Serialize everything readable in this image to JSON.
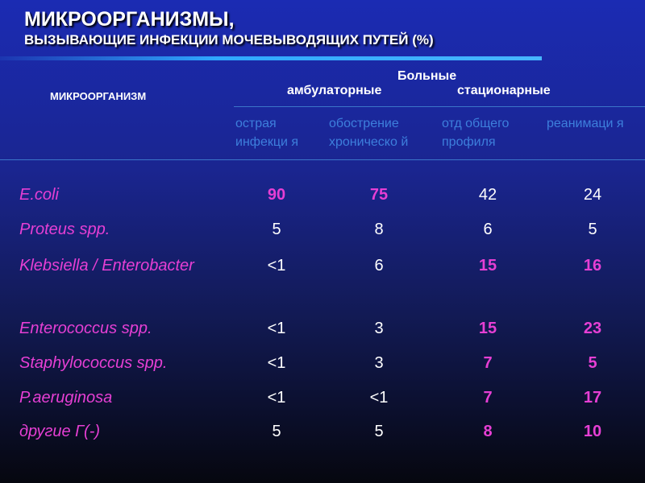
{
  "title": {
    "line1": "МИКРООРГАНИЗМЫ,",
    "line2": "ВЫЗЫВАЮЩИЕ   ИНФЕКЦИИ МОЧЕВЫВОДЯЩИХ ПУТЕЙ (%)"
  },
  "header": {
    "organism": "МИКРООРГАНИЗМ",
    "patients": "Больные",
    "outpatient": "амбулаторные",
    "inpatient": "стационарные"
  },
  "subheaders": [
    "острая инфекци я",
    "обострение хроническо й",
    "отд общего профиля",
    "реанимаци я"
  ],
  "colors": {
    "highlight": "#e63fd4",
    "normal": "#ffffff",
    "subheader": "#3d7fdc"
  },
  "rows": [
    {
      "name": "E.coli",
      "values": [
        "90",
        "75",
        "42",
        "24"
      ],
      "highlight": [
        true,
        true,
        false,
        false
      ]
    },
    {
      "name": "Proteus spp.",
      "values": [
        "5",
        "8",
        "6",
        "5"
      ],
      "highlight": [
        false,
        false,
        false,
        false
      ]
    },
    {
      "name": "Klebsiella / Enterobacter",
      "values": [
        "<1",
        "6",
        "15",
        "16"
      ],
      "highlight": [
        false,
        false,
        true,
        true
      ]
    },
    {
      "name": "Enterococcus spp.",
      "values": [
        "<1",
        "3",
        "15",
        "23"
      ],
      "highlight": [
        false,
        false,
        true,
        true
      ]
    },
    {
      "name": "Staphylococcus spp.",
      "values": [
        "<1",
        "3",
        "7",
        "5"
      ],
      "highlight": [
        false,
        false,
        true,
        true
      ]
    },
    {
      "name": "P.aeruginosa",
      "values": [
        "<1",
        "<1",
        "7",
        "17"
      ],
      "highlight": [
        false,
        false,
        true,
        true
      ]
    },
    {
      "name": "другие Г(-)",
      "values": [
        "5",
        "5",
        "8",
        "10"
      ],
      "highlight": [
        false,
        false,
        true,
        true
      ]
    }
  ]
}
